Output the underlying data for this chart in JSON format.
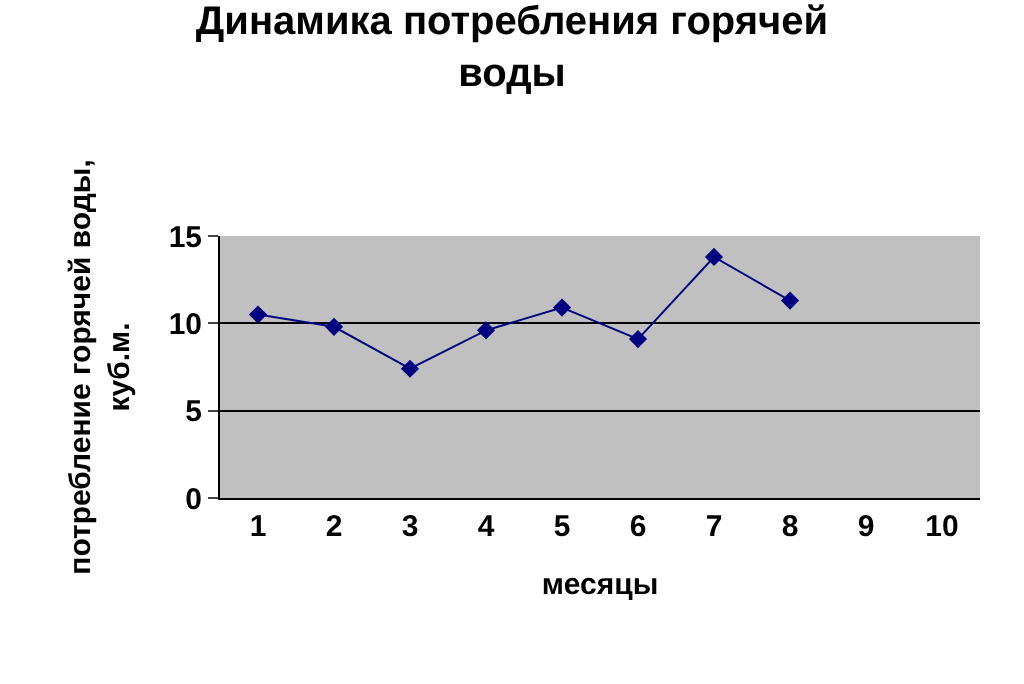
{
  "chart_data": {
    "type": "line",
    "title": "Динамика потребления горячей воды",
    "xlabel": "месяцы",
    "ylabel": "потребление горячей воды, куб.м.",
    "categories": [
      "1",
      "2",
      "3",
      "4",
      "5",
      "6",
      "7",
      "8",
      "9",
      "10"
    ],
    "series": [
      {
        "color": "#000080",
        "values": [
          10.5,
          9.8,
          7.4,
          9.6,
          10.9,
          9.1,
          13.8,
          11.3,
          null,
          null
        ]
      }
    ],
    "ylim": [
      0,
      15
    ],
    "yticks": [
      0,
      5,
      10,
      15
    ],
    "grid": "y",
    "marker": "diamond",
    "line_style": "solid"
  }
}
